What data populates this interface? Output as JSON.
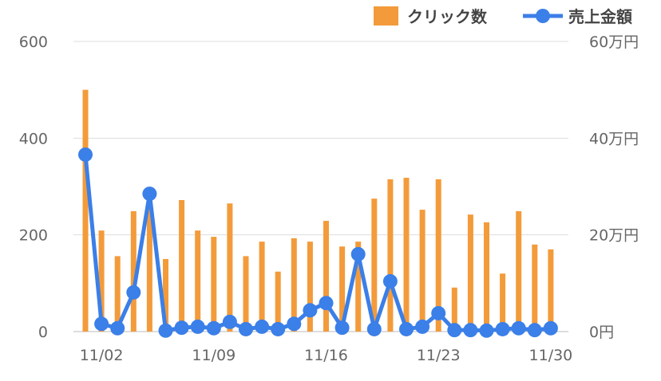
{
  "chart_data": {
    "type": "bar+line",
    "categories": [
      "11/01",
      "11/02",
      "11/03",
      "11/04",
      "11/05",
      "11/06",
      "11/07",
      "11/08",
      "11/09",
      "11/10",
      "11/11",
      "11/12",
      "11/13",
      "11/14",
      "11/15",
      "11/16",
      "11/17",
      "11/18",
      "11/19",
      "11/20",
      "11/21",
      "11/22",
      "11/23",
      "11/24",
      "11/25",
      "11/26",
      "11/27",
      "11/28",
      "11/29",
      "11/30"
    ],
    "x_tick_labels": [
      "11/02",
      "11/09",
      "11/16",
      "11/23",
      "11/30"
    ],
    "left_axis": {
      "ylim": [
        0,
        600
      ],
      "ticks": [
        "0",
        "200",
        "400",
        "600"
      ]
    },
    "right_axis": {
      "ylim": [
        0,
        60
      ],
      "unit": "万円",
      "ticks": [
        "0円",
        "20万円",
        "40万円",
        "60万円"
      ]
    },
    "grid": true,
    "legend_position": "top-right",
    "series": [
      {
        "name": "クリック数",
        "type": "bar",
        "axis": "left",
        "color": "#F39B3A",
        "values": [
          500,
          209,
          156,
          249,
          280,
          150,
          272,
          209,
          196,
          265,
          156,
          186,
          124,
          193,
          186,
          229,
          176,
          186,
          275,
          315,
          318,
          252,
          315,
          91,
          242,
          226,
          120,
          249,
          180,
          170
        ]
      },
      {
        "name": "売上金額",
        "type": "line",
        "axis": "right",
        "color": "#3B7FE8",
        "values": [
          36.6,
          1.6,
          0.7,
          8.1,
          28.5,
          0.2,
          0.8,
          1.0,
          0.7,
          2.0,
          0.5,
          1.0,
          0.5,
          1.6,
          4.4,
          5.9,
          0.8,
          16.0,
          0.5,
          10.4,
          0.5,
          1.0,
          3.8,
          0.3,
          0.3,
          0.2,
          0.5,
          0.7,
          0.3,
          0.7
        ]
      }
    ]
  }
}
